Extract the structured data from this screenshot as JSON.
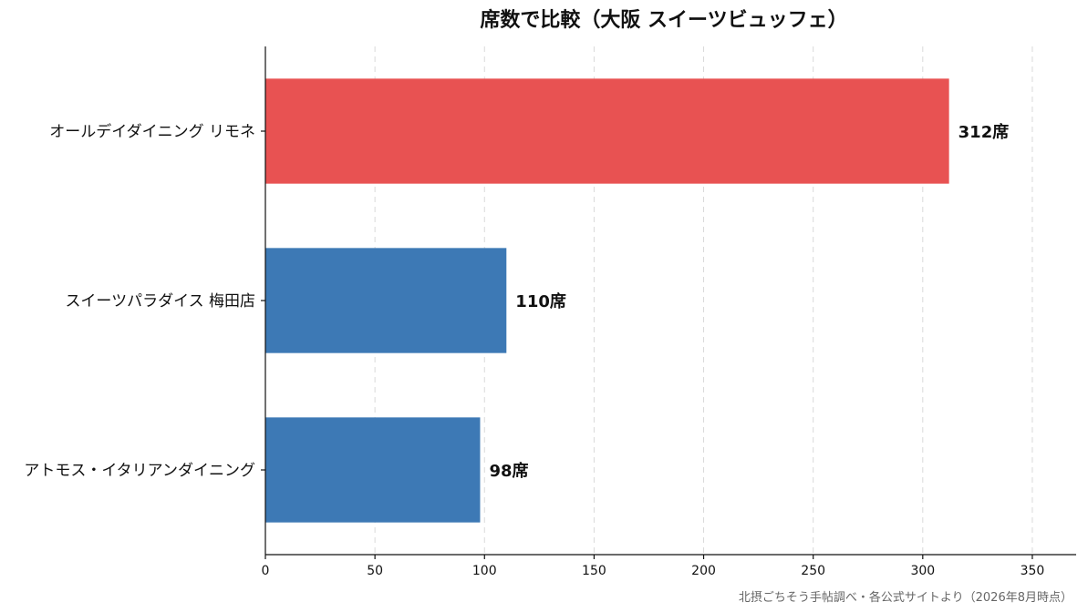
{
  "chart_data": {
    "type": "bar",
    "orientation": "horizontal",
    "title": "席数で比較（大阪 スイーツビュッフェ）",
    "xlabel": "",
    "ylabel": "",
    "xlim": [
      0,
      370
    ],
    "xticks": [
      0,
      50,
      100,
      150,
      200,
      250,
      300,
      350
    ],
    "grid": "vertical-dashed",
    "categories": [
      "オールデイダイニング リモネ",
      "スイーツパラダイス 梅田店",
      "アトモス・イタリアンダイニング"
    ],
    "values": [
      312,
      110,
      98
    ],
    "value_labels": [
      "312席",
      "110席",
      "98席"
    ],
    "bar_colors": [
      "#e85252",
      "#3d79b5",
      "#3d79b5"
    ],
    "source": "北摂ごちそう手帖調べ・各公式サイトより（2026年8月時点）"
  }
}
